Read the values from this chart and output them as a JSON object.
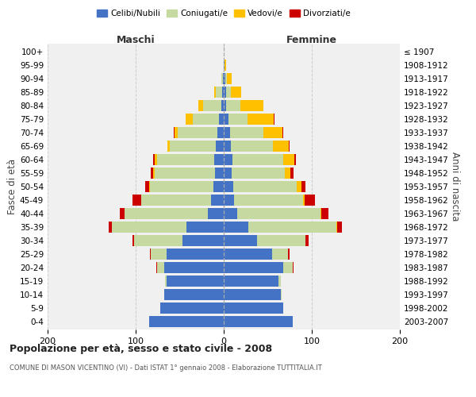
{
  "age_groups_bottom_to_top": [
    "0-4",
    "5-9",
    "10-14",
    "15-19",
    "20-24",
    "25-29",
    "30-34",
    "35-39",
    "40-44",
    "45-49",
    "50-54",
    "55-59",
    "60-64",
    "65-69",
    "70-74",
    "75-79",
    "80-84",
    "85-89",
    "90-94",
    "95-99",
    "100+"
  ],
  "birth_years_bottom_to_top": [
    "2003-2007",
    "1998-2002",
    "1993-1997",
    "1988-1992",
    "1983-1987",
    "1978-1982",
    "1973-1977",
    "1968-1972",
    "1963-1967",
    "1958-1962",
    "1953-1957",
    "1948-1952",
    "1943-1947",
    "1938-1942",
    "1933-1937",
    "1928-1932",
    "1923-1927",
    "1918-1922",
    "1913-1917",
    "1908-1912",
    "≤ 1907"
  ],
  "males_celibe": [
    85,
    72,
    68,
    65,
    68,
    65,
    47,
    42,
    18,
    14,
    12,
    10,
    11,
    9,
    7,
    5,
    3,
    2,
    1,
    0,
    0
  ],
  "males_coniug": [
    0,
    0,
    0,
    2,
    8,
    18,
    55,
    85,
    95,
    80,
    72,
    68,
    65,
    52,
    45,
    30,
    20,
    7,
    2,
    0,
    0
  ],
  "males_vedovo": [
    0,
    0,
    0,
    0,
    0,
    0,
    0,
    0,
    0,
    0,
    1,
    2,
    2,
    3,
    4,
    8,
    6,
    2,
    0,
    0,
    0
  ],
  "males_divorzio": [
    0,
    0,
    0,
    0,
    1,
    1,
    2,
    4,
    5,
    10,
    4,
    3,
    2,
    0,
    1,
    0,
    0,
    0,
    0,
    0,
    0
  ],
  "females_nubile": [
    78,
    68,
    65,
    62,
    68,
    55,
    38,
    28,
    15,
    12,
    11,
    9,
    10,
    8,
    7,
    5,
    3,
    3,
    2,
    1,
    0
  ],
  "females_coniug": [
    0,
    0,
    1,
    3,
    10,
    18,
    55,
    100,
    95,
    78,
    72,
    60,
    58,
    48,
    38,
    22,
    16,
    5,
    2,
    0,
    0
  ],
  "females_vedova": [
    0,
    0,
    0,
    0,
    0,
    0,
    0,
    1,
    1,
    2,
    5,
    7,
    12,
    18,
    22,
    30,
    26,
    12,
    5,
    2,
    0
  ],
  "females_divorzio": [
    0,
    0,
    0,
    0,
    1,
    2,
    3,
    5,
    8,
    12,
    5,
    3,
    2,
    1,
    1,
    1,
    0,
    0,
    0,
    0,
    0
  ],
  "color_celibe": "#4472c4",
  "color_coniugato": "#c5d9a0",
  "color_vedovo": "#ffc000",
  "color_divorziato": "#cc0000",
  "xlim": 200,
  "title": "Popolazione per età, sesso e stato civile - 2008",
  "subtitle": "COMUNE DI MASON VICENTINO (VI) - Dati ISTAT 1° gennaio 2008 - Elaborazione TUTTITALIA.IT",
  "ylabel_left": "Fasce di età",
  "ylabel_right": "Anni di nascita",
  "xlabel_maschi": "Maschi",
  "xlabel_femmine": "Femmine",
  "legend_labels": [
    "Celibi/Nubili",
    "Coniugati/e",
    "Vedovi/e",
    "Divorziati/e"
  ],
  "bg_color": "#f0f0f0"
}
